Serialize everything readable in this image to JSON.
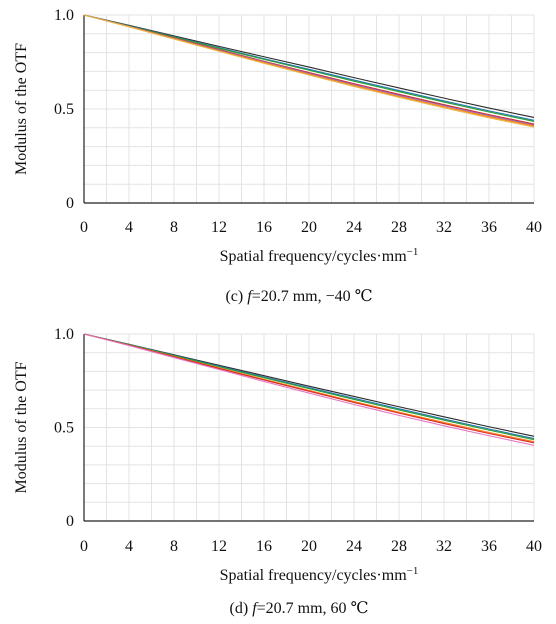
{
  "chart_data": [
    {
      "type": "line",
      "caption_prefix": "(c) ",
      "caption_italic": "f",
      "caption_rest": "=20.7 mm, −40 ℃",
      "xlabel": "Spatial frequency/cycles·mm",
      "xlabel_sup": "−1",
      "ylabel": "Modulus of the OTF",
      "xlim": [
        0,
        40
      ],
      "ylim": [
        0,
        1.0
      ],
      "xticks": [
        0,
        4,
        8,
        12,
        16,
        20,
        24,
        28,
        32,
        36,
        40
      ],
      "yticks": [
        0,
        0.5,
        1.0
      ],
      "ytick_labels": [
        "0",
        "0.5",
        "1.0"
      ],
      "grid": true,
      "x": [
        0,
        4,
        8,
        12,
        16,
        20,
        24,
        28,
        32,
        36,
        40
      ],
      "series": [
        {
          "color": "#2b2b2b",
          "values": [
            1.0,
            0.945,
            0.889,
            0.833,
            0.778,
            0.723,
            0.667,
            0.612,
            0.558,
            0.505,
            0.455
          ]
        },
        {
          "color": "#1f77b4",
          "values": [
            1.0,
            0.943,
            0.885,
            0.826,
            0.768,
            0.711,
            0.654,
            0.598,
            0.543,
            0.49,
            0.44
          ]
        },
        {
          "color": "#2ca02c",
          "values": [
            1.0,
            0.942,
            0.883,
            0.823,
            0.764,
            0.706,
            0.648,
            0.592,
            0.537,
            0.484,
            0.434
          ]
        },
        {
          "color": "#d62728",
          "values": [
            1.0,
            0.94,
            0.878,
            0.816,
            0.754,
            0.694,
            0.635,
            0.578,
            0.523,
            0.47,
            0.42
          ]
        },
        {
          "color": "#9467bd",
          "values": [
            1.0,
            0.939,
            0.876,
            0.813,
            0.751,
            0.69,
            0.63,
            0.573,
            0.518,
            0.465,
            0.415
          ]
        },
        {
          "color": "#ff7f0e",
          "values": [
            1.0,
            0.938,
            0.874,
            0.81,
            0.747,
            0.685,
            0.625,
            0.567,
            0.512,
            0.459,
            0.41
          ]
        },
        {
          "color": "#e6b54a",
          "values": [
            1.0,
            0.937,
            0.872,
            0.807,
            0.743,
            0.681,
            0.62,
            0.562,
            0.506,
            0.453,
            0.404
          ]
        }
      ]
    },
    {
      "type": "line",
      "caption_prefix": "(d) ",
      "caption_italic": "f",
      "caption_rest": "=20.7 mm, 60 ℃",
      "xlabel": "Spatial frequency/cycles·mm",
      "xlabel_sup": "−1",
      "ylabel": "Modulus of the OTF",
      "xlim": [
        0,
        40
      ],
      "ylim": [
        0,
        1.0
      ],
      "xticks": [
        0,
        4,
        8,
        12,
        16,
        20,
        24,
        28,
        32,
        36,
        40
      ],
      "yticks": [
        0,
        0.5,
        1.0
      ],
      "ytick_labels": [
        "0",
        "0.5",
        "1.0"
      ],
      "grid": true,
      "x": [
        0,
        4,
        8,
        12,
        16,
        20,
        24,
        28,
        32,
        36,
        40
      ],
      "series": [
        {
          "color": "#2b2b2b",
          "values": [
            1.0,
            0.945,
            0.889,
            0.833,
            0.777,
            0.721,
            0.666,
            0.611,
            0.557,
            0.504,
            0.453
          ]
        },
        {
          "color": "#1f77b4",
          "values": [
            1.0,
            0.944,
            0.886,
            0.828,
            0.77,
            0.713,
            0.656,
            0.6,
            0.545,
            0.492,
            0.441
          ]
        },
        {
          "color": "#2ca02c",
          "values": [
            1.0,
            0.943,
            0.884,
            0.825,
            0.766,
            0.708,
            0.65,
            0.594,
            0.539,
            0.486,
            0.435
          ]
        },
        {
          "color": "#ff7f0e",
          "values": [
            1.0,
            0.941,
            0.88,
            0.819,
            0.758,
            0.698,
            0.639,
            0.582,
            0.527,
            0.474,
            0.424
          ]
        },
        {
          "color": "#d62728",
          "values": [
            1.0,
            0.94,
            0.878,
            0.816,
            0.754,
            0.694,
            0.634,
            0.577,
            0.521,
            0.468,
            0.418
          ]
        },
        {
          "color": "#e377c2",
          "values": [
            1.0,
            0.938,
            0.874,
            0.81,
            0.746,
            0.684,
            0.623,
            0.565,
            0.509,
            0.456,
            0.405
          ]
        }
      ]
    }
  ]
}
